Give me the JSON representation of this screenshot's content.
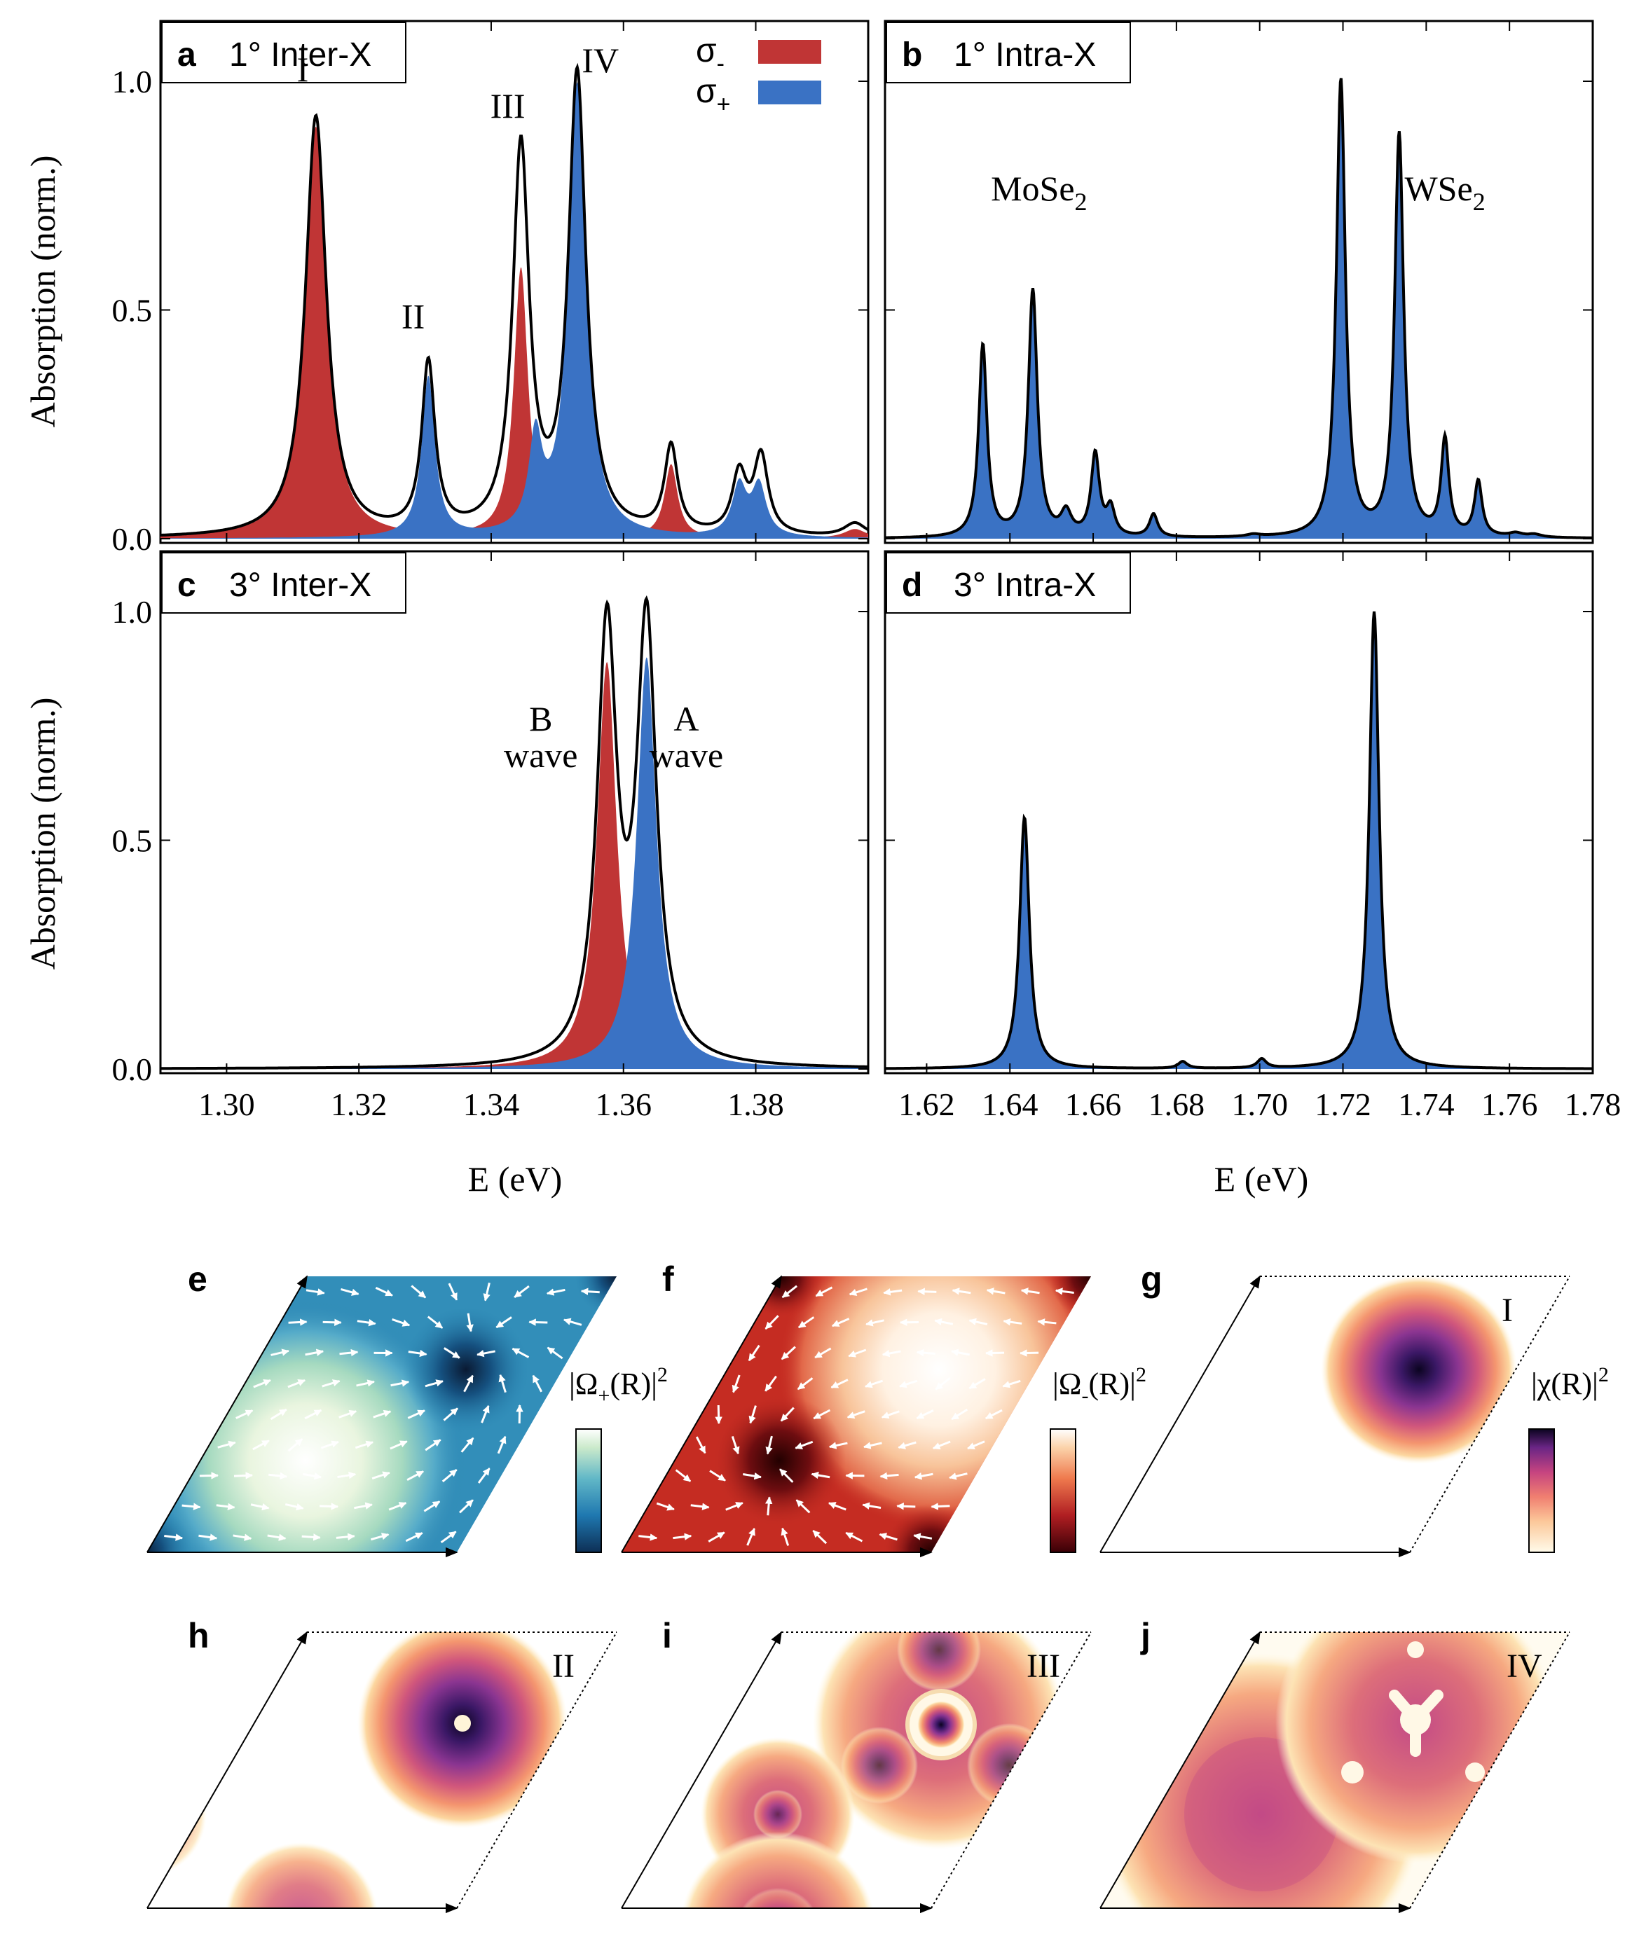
{
  "colors": {
    "sigma_minus": "#c03535",
    "sigma_plus": "#3a72c4",
    "total": "#000000"
  },
  "legend": {
    "sigma_minus": "σ",
    "sigma_minus_sub": "-",
    "sigma_plus": "σ",
    "sigma_plus_sub": "+"
  },
  "axes": {
    "ylabel": "Absorption (norm.)",
    "xlabel": "E (eV)",
    "yticks": [
      "0.0",
      "0.5",
      "1.0"
    ],
    "left_xticks": [
      "1.30",
      "1.32",
      "1.34",
      "1.36",
      "1.38"
    ],
    "right_xticks": [
      "1.62",
      "1.64",
      "1.66",
      "1.68",
      "1.70",
      "1.72",
      "1.74",
      "1.76",
      "1.78"
    ]
  },
  "chart_data": [
    {
      "panel": "a",
      "title": "1° Inter-X",
      "type": "area",
      "xlim": [
        1.29,
        1.397
      ],
      "ylim": [
        0,
        1.1
      ],
      "labels": [
        "I",
        "II",
        "III",
        "IV"
      ],
      "series": [
        {
          "name": "σ-",
          "peaks": [
            [
              1.3135,
              0.9,
              0.0019
            ],
            [
              1.3445,
              0.59,
              0.0013
            ],
            [
              1.3672,
              0.16,
              0.0012
            ],
            [
              1.395,
              0.02,
              0.002
            ]
          ]
        },
        {
          "name": "σ+",
          "peaks": [
            [
              1.3305,
              0.35,
              0.0012
            ],
            [
              1.3467,
              0.2,
              0.0012
            ],
            [
              1.353,
              0.99,
              0.0016
            ],
            [
              1.3775,
              0.11,
              0.0013
            ],
            [
              1.3805,
              0.11,
              0.0013
            ]
          ]
        },
        {
          "name": "total",
          "peaks": [
            [
              1.3135,
              0.92,
              0.0019
            ],
            [
              1.3305,
              0.37,
              0.0012
            ],
            [
              1.3445,
              0.84,
              0.0015
            ],
            [
              1.353,
              1.0,
              0.0016
            ],
            [
              1.3672,
              0.19,
              0.0012
            ],
            [
              1.3775,
              0.13,
              0.0013
            ],
            [
              1.3808,
              0.17,
              0.0013
            ],
            [
              1.395,
              0.03,
              0.002
            ]
          ]
        }
      ]
    },
    {
      "panel": "b",
      "title": "1° Intra-X",
      "type": "area",
      "xlim": [
        1.61,
        1.78
      ],
      "ylim": [
        0,
        1.1
      ],
      "labels": [
        "MoSe",
        "2",
        "WSe",
        "2"
      ],
      "series": [
        {
          "name": "σ+",
          "peaks": [
            [
              1.6335,
              0.42,
              0.0012
            ],
            [
              1.6455,
              0.54,
              0.0013
            ],
            [
              1.6535,
              0.05,
              0.0015
            ],
            [
              1.6605,
              0.18,
              0.0012
            ],
            [
              1.6642,
              0.06,
              0.0012
            ],
            [
              1.6745,
              0.05,
              0.0012
            ],
            [
              1.6985,
              0.005,
              0.002
            ],
            [
              1.7195,
              1.0,
              0.0013
            ],
            [
              1.7335,
              0.88,
              0.0013
            ],
            [
              1.7445,
              0.21,
              0.0011
            ],
            [
              1.7525,
              0.12,
              0.0011
            ],
            [
              1.7615,
              0.008,
              0.002
            ],
            [
              1.766,
              0.006,
              0.002
            ]
          ]
        },
        {
          "name": "total",
          "peaks": [
            [
              1.6335,
              0.42,
              0.0012
            ],
            [
              1.6455,
              0.54,
              0.0013
            ],
            [
              1.6535,
              0.05,
              0.0015
            ],
            [
              1.6605,
              0.18,
              0.0012
            ],
            [
              1.6642,
              0.06,
              0.0012
            ],
            [
              1.6745,
              0.05,
              0.0012
            ],
            [
              1.6985,
              0.005,
              0.002
            ],
            [
              1.7195,
              1.0,
              0.0013
            ],
            [
              1.7335,
              0.88,
              0.0013
            ],
            [
              1.7445,
              0.21,
              0.0011
            ],
            [
              1.7525,
              0.12,
              0.0011
            ],
            [
              1.7615,
              0.008,
              0.002
            ],
            [
              1.766,
              0.006,
              0.002
            ]
          ]
        }
      ]
    },
    {
      "panel": "c",
      "title": "3° Inter-X",
      "type": "area",
      "xlim": [
        1.29,
        1.397
      ],
      "ylim": [
        0,
        1.1
      ],
      "labels": [
        "B",
        "wave",
        "A",
        "wave"
      ],
      "series": [
        {
          "name": "σ-",
          "peaks": [
            [
              1.3575,
              0.89,
              0.0018
            ]
          ]
        },
        {
          "name": "σ+",
          "peaks": [
            [
              1.3635,
              0.9,
              0.0018
            ]
          ]
        },
        {
          "name": "total",
          "peaks": [
            [
              1.3575,
              0.94,
              0.0018
            ],
            [
              1.3635,
              0.95,
              0.0018
            ]
          ]
        }
      ]
    },
    {
      "panel": "d",
      "title": "3° Intra-X",
      "type": "area",
      "xlim": [
        1.61,
        1.78
      ],
      "ylim": [
        0,
        1.1
      ],
      "labels": [],
      "series": [
        {
          "name": "σ+",
          "peaks": [
            [
              1.6435,
              0.55,
              0.0014
            ],
            [
              1.6815,
              0.015,
              0.0013
            ],
            [
              1.7005,
              0.02,
              0.0013
            ],
            [
              1.7275,
              1.0,
              0.0014
            ]
          ]
        },
        {
          "name": "total",
          "peaks": [
            [
              1.6435,
              0.55,
              0.0014
            ],
            [
              1.6815,
              0.015,
              0.0013
            ],
            [
              1.7005,
              0.02,
              0.0013
            ],
            [
              1.7275,
              1.0,
              0.0014
            ]
          ]
        }
      ]
    }
  ],
  "maps": [
    {
      "panel": "e",
      "colorbar_label": "|Ω",
      "colorbar_sub": "+",
      "colorbar_tail": "(R)|",
      "colorbar_sup": "2"
    },
    {
      "panel": "f",
      "colorbar_label": "|Ω",
      "colorbar_sub": "-",
      "colorbar_tail": "(R)|",
      "colorbar_sup": "2"
    },
    {
      "panel": "g",
      "label": "I",
      "colorbar_label": "|χ(R)|",
      "colorbar_sup": "2"
    },
    {
      "panel": "h",
      "label": "II"
    },
    {
      "panel": "i",
      "label": "III"
    },
    {
      "panel": "j",
      "label": "IV"
    }
  ]
}
